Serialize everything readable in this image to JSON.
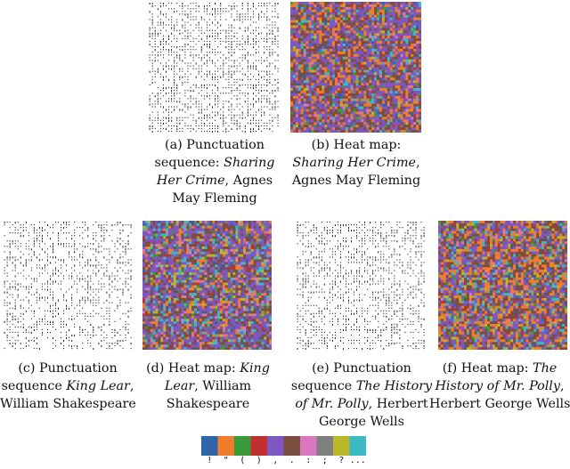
{
  "figure": {
    "panels": [
      {
        "id": "a",
        "kind": "punctuation-sequence",
        "caption": {
          "prefix": "(a) Punctuation",
          "l2a": "sequence: ",
          "l2b": "Sharing",
          "l3a": "Her Crime",
          "l3b": ", Agnes",
          "l4": "May Fleming"
        }
      },
      {
        "id": "b",
        "kind": "heat-map",
        "caption": {
          "l1": "(b) Heat map:",
          "l2a": "Sharing Her Crime",
          "l2b": ",",
          "l3": "Agnes May Fleming"
        }
      },
      {
        "id": "c",
        "kind": "punctuation-sequence",
        "caption": {
          "l1": "(c) Punctuation",
          "l2a": "sequence ",
          "l2b": "King Lear",
          "l2c": ",",
          "l3": "William Shakespeare"
        }
      },
      {
        "id": "d",
        "kind": "heat-map",
        "caption": {
          "l1a": "(d) Heat map: ",
          "l1b": "King",
          "l2a": "Lear",
          "l2b": ", William",
          "l3": "Shakespeare"
        }
      },
      {
        "id": "e",
        "kind": "punctuation-sequence",
        "caption": {
          "l1": "(e) Punctuation",
          "l2a": "sequence ",
          "l2b": "The History",
          "l3a": "of Mr. Polly",
          "l3b": ", Herbert",
          "l4": "George Wells"
        }
      },
      {
        "id": "f",
        "kind": "heat-map",
        "caption": {
          "l1a": "(f) Heat map: ",
          "l1b": "The",
          "l2a": "History of Mr. Polly",
          "l2b": ",",
          "l3": "Herbert George Wells"
        }
      }
    ],
    "legend": {
      "colors": [
        "#2f64a8",
        "#f07d2a",
        "#3a9a3a",
        "#c0302e",
        "#7e57c2",
        "#7a4e3f",
        "#d977c0",
        "#7f7f7f",
        "#b8b82a",
        "#3bbac6"
      ],
      "labels": [
        "!",
        "\"",
        "(",
        ")",
        ",",
        ".",
        ":",
        ";",
        "?",
        "..."
      ]
    },
    "heatmap_palette_weights": {
      "b": [
        1,
        8,
        1,
        1,
        14,
        10,
        1,
        1,
        1,
        2
      ],
      "d": [
        1,
        4,
        1,
        1,
        14,
        10,
        2,
        1,
        2,
        3
      ],
      "f": [
        1,
        10,
        1,
        1,
        12,
        12,
        1,
        1,
        2,
        3
      ]
    }
  }
}
